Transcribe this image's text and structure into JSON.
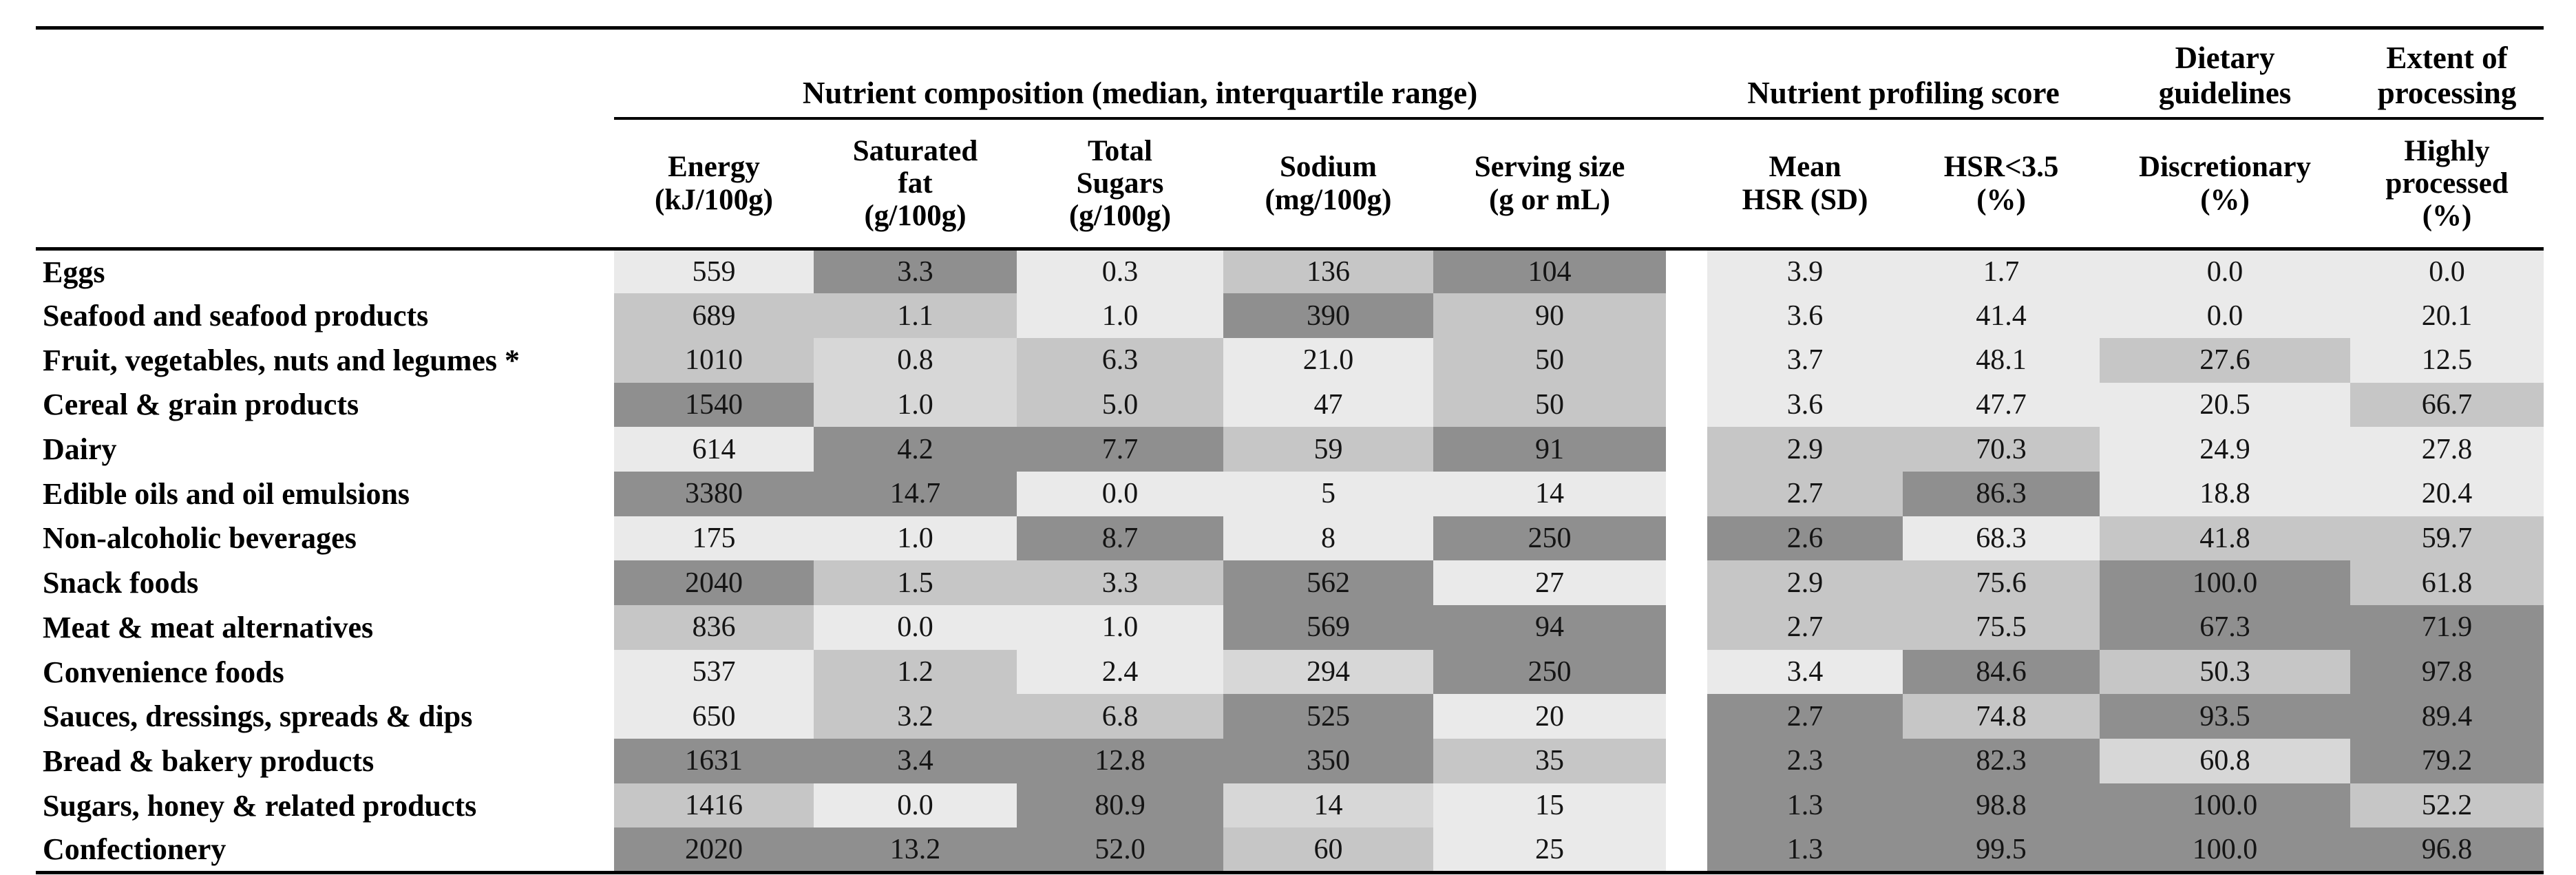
{
  "table": {
    "shade_colors": [
      "#eaeaea",
      "#d7d7d7",
      "#c6c6c6",
      "#8f8f8f"
    ],
    "group_headers": [
      {
        "label": "Nutrient composition (median, interquartile range)",
        "span": 5
      },
      {
        "label": "Nutrient profiling score",
        "span": 2
      },
      {
        "label": "Dietary\nguidelines",
        "span": 1
      },
      {
        "label": "Extent of\nprocessing",
        "span": 1
      }
    ],
    "columns": [
      "Energy\n(kJ/100g)",
      "Saturated\nfat\n(g/100g)",
      "Total\nSugars\n(g/100g)",
      "Sodium\n(mg/100g)",
      "Serving size\n(g or mL)",
      "Mean\nHSR (SD)",
      "HSR<3.5\n(%)",
      "Discretionary\n(%)",
      "Highly\nprocessed\n(%)"
    ],
    "rows": [
      {
        "category": "Eggs",
        "values": [
          "559",
          "3.3",
          "0.3",
          "136",
          "104",
          "3.9",
          "1.7",
          "0.0",
          "0.0"
        ],
        "shades": [
          0,
          3,
          0,
          2,
          3,
          0,
          0,
          0,
          0
        ]
      },
      {
        "category": "Seafood and seafood products",
        "values": [
          "689",
          "1.1",
          "1.0",
          "390",
          "90",
          "3.6",
          "41.4",
          "0.0",
          "20.1"
        ],
        "shades": [
          2,
          2,
          0,
          3,
          2,
          0,
          0,
          0,
          0
        ]
      },
      {
        "category": "Fruit, vegetables, nuts and legumes *",
        "values": [
          "1010",
          "0.8",
          "6.3",
          "21.0",
          "50",
          "3.7",
          "48.1",
          "27.6",
          "12.5"
        ],
        "shades": [
          2,
          1,
          2,
          0,
          2,
          0,
          0,
          2,
          0
        ]
      },
      {
        "category": "Cereal & grain products",
        "values": [
          "1540",
          "1.0",
          "5.0",
          "47",
          "50",
          "3.6",
          "47.7",
          "20.5",
          "66.7"
        ],
        "shades": [
          3,
          1,
          2,
          0,
          2,
          0,
          0,
          0,
          2
        ]
      },
      {
        "category": "Dairy",
        "values": [
          "614",
          "4.2",
          "7.7",
          "59",
          "91",
          "2.9",
          "70.3",
          "24.9",
          "27.8"
        ],
        "shades": [
          0,
          3,
          3,
          2,
          3,
          2,
          2,
          0,
          0
        ]
      },
      {
        "category": "Edible oils and oil emulsions",
        "values": [
          "3380",
          "14.7",
          "0.0",
          "5",
          "14",
          "2.7",
          "86.3",
          "18.8",
          "20.4"
        ],
        "shades": [
          3,
          3,
          0,
          0,
          0,
          2,
          3,
          0,
          0
        ]
      },
      {
        "category": "Non-alcoholic beverages",
        "values": [
          "175",
          "1.0",
          "8.7",
          "8",
          "250",
          "2.6",
          "68.3",
          "41.8",
          "59.7"
        ],
        "shades": [
          0,
          0,
          3,
          0,
          3,
          3,
          0,
          2,
          2
        ]
      },
      {
        "category": "Snack foods",
        "values": [
          "2040",
          "1.5",
          "3.3",
          "562",
          "27",
          "2.9",
          "75.6",
          "100.0",
          "61.8"
        ],
        "shades": [
          3,
          2,
          2,
          3,
          0,
          2,
          2,
          3,
          2
        ]
      },
      {
        "category": "Meat & meat alternatives",
        "values": [
          "836",
          "0.0",
          "1.0",
          "569",
          "94",
          "2.7",
          "75.5",
          "67.3",
          "71.9"
        ],
        "shades": [
          2,
          0,
          0,
          3,
          3,
          2,
          2,
          3,
          3
        ]
      },
      {
        "category": "Convenience foods",
        "values": [
          "537",
          "1.2",
          "2.4",
          "294",
          "250",
          "3.4",
          "84.6",
          "50.3",
          "97.8"
        ],
        "shades": [
          0,
          2,
          0,
          1,
          3,
          0,
          3,
          2,
          3
        ]
      },
      {
        "category": "Sauces, dressings, spreads & dips",
        "values": [
          "650",
          "3.2",
          "6.8",
          "525",
          "20",
          "2.7",
          "74.8",
          "93.5",
          "89.4"
        ],
        "shades": [
          0,
          2,
          2,
          3,
          0,
          3,
          2,
          3,
          3
        ]
      },
      {
        "category": "Bread & bakery products",
        "values": [
          "1631",
          "3.4",
          "12.8",
          "350",
          "35",
          "2.3",
          "82.3",
          "60.8",
          "79.2"
        ],
        "shades": [
          3,
          3,
          3,
          3,
          2,
          3,
          3,
          1,
          3
        ]
      },
      {
        "category": "Sugars, honey & related products",
        "values": [
          "1416",
          "0.0",
          "80.9",
          "14",
          "15",
          "1.3",
          "98.8",
          "100.0",
          "52.2"
        ],
        "shades": [
          2,
          0,
          3,
          1,
          0,
          3,
          3,
          3,
          2
        ]
      },
      {
        "category": "Confectionery",
        "values": [
          "2020",
          "13.2",
          "52.0",
          "60",
          "25",
          "1.3",
          "99.5",
          "100.0",
          "96.8"
        ],
        "shades": [
          3,
          3,
          3,
          2,
          0,
          3,
          3,
          3,
          3
        ]
      }
    ]
  }
}
